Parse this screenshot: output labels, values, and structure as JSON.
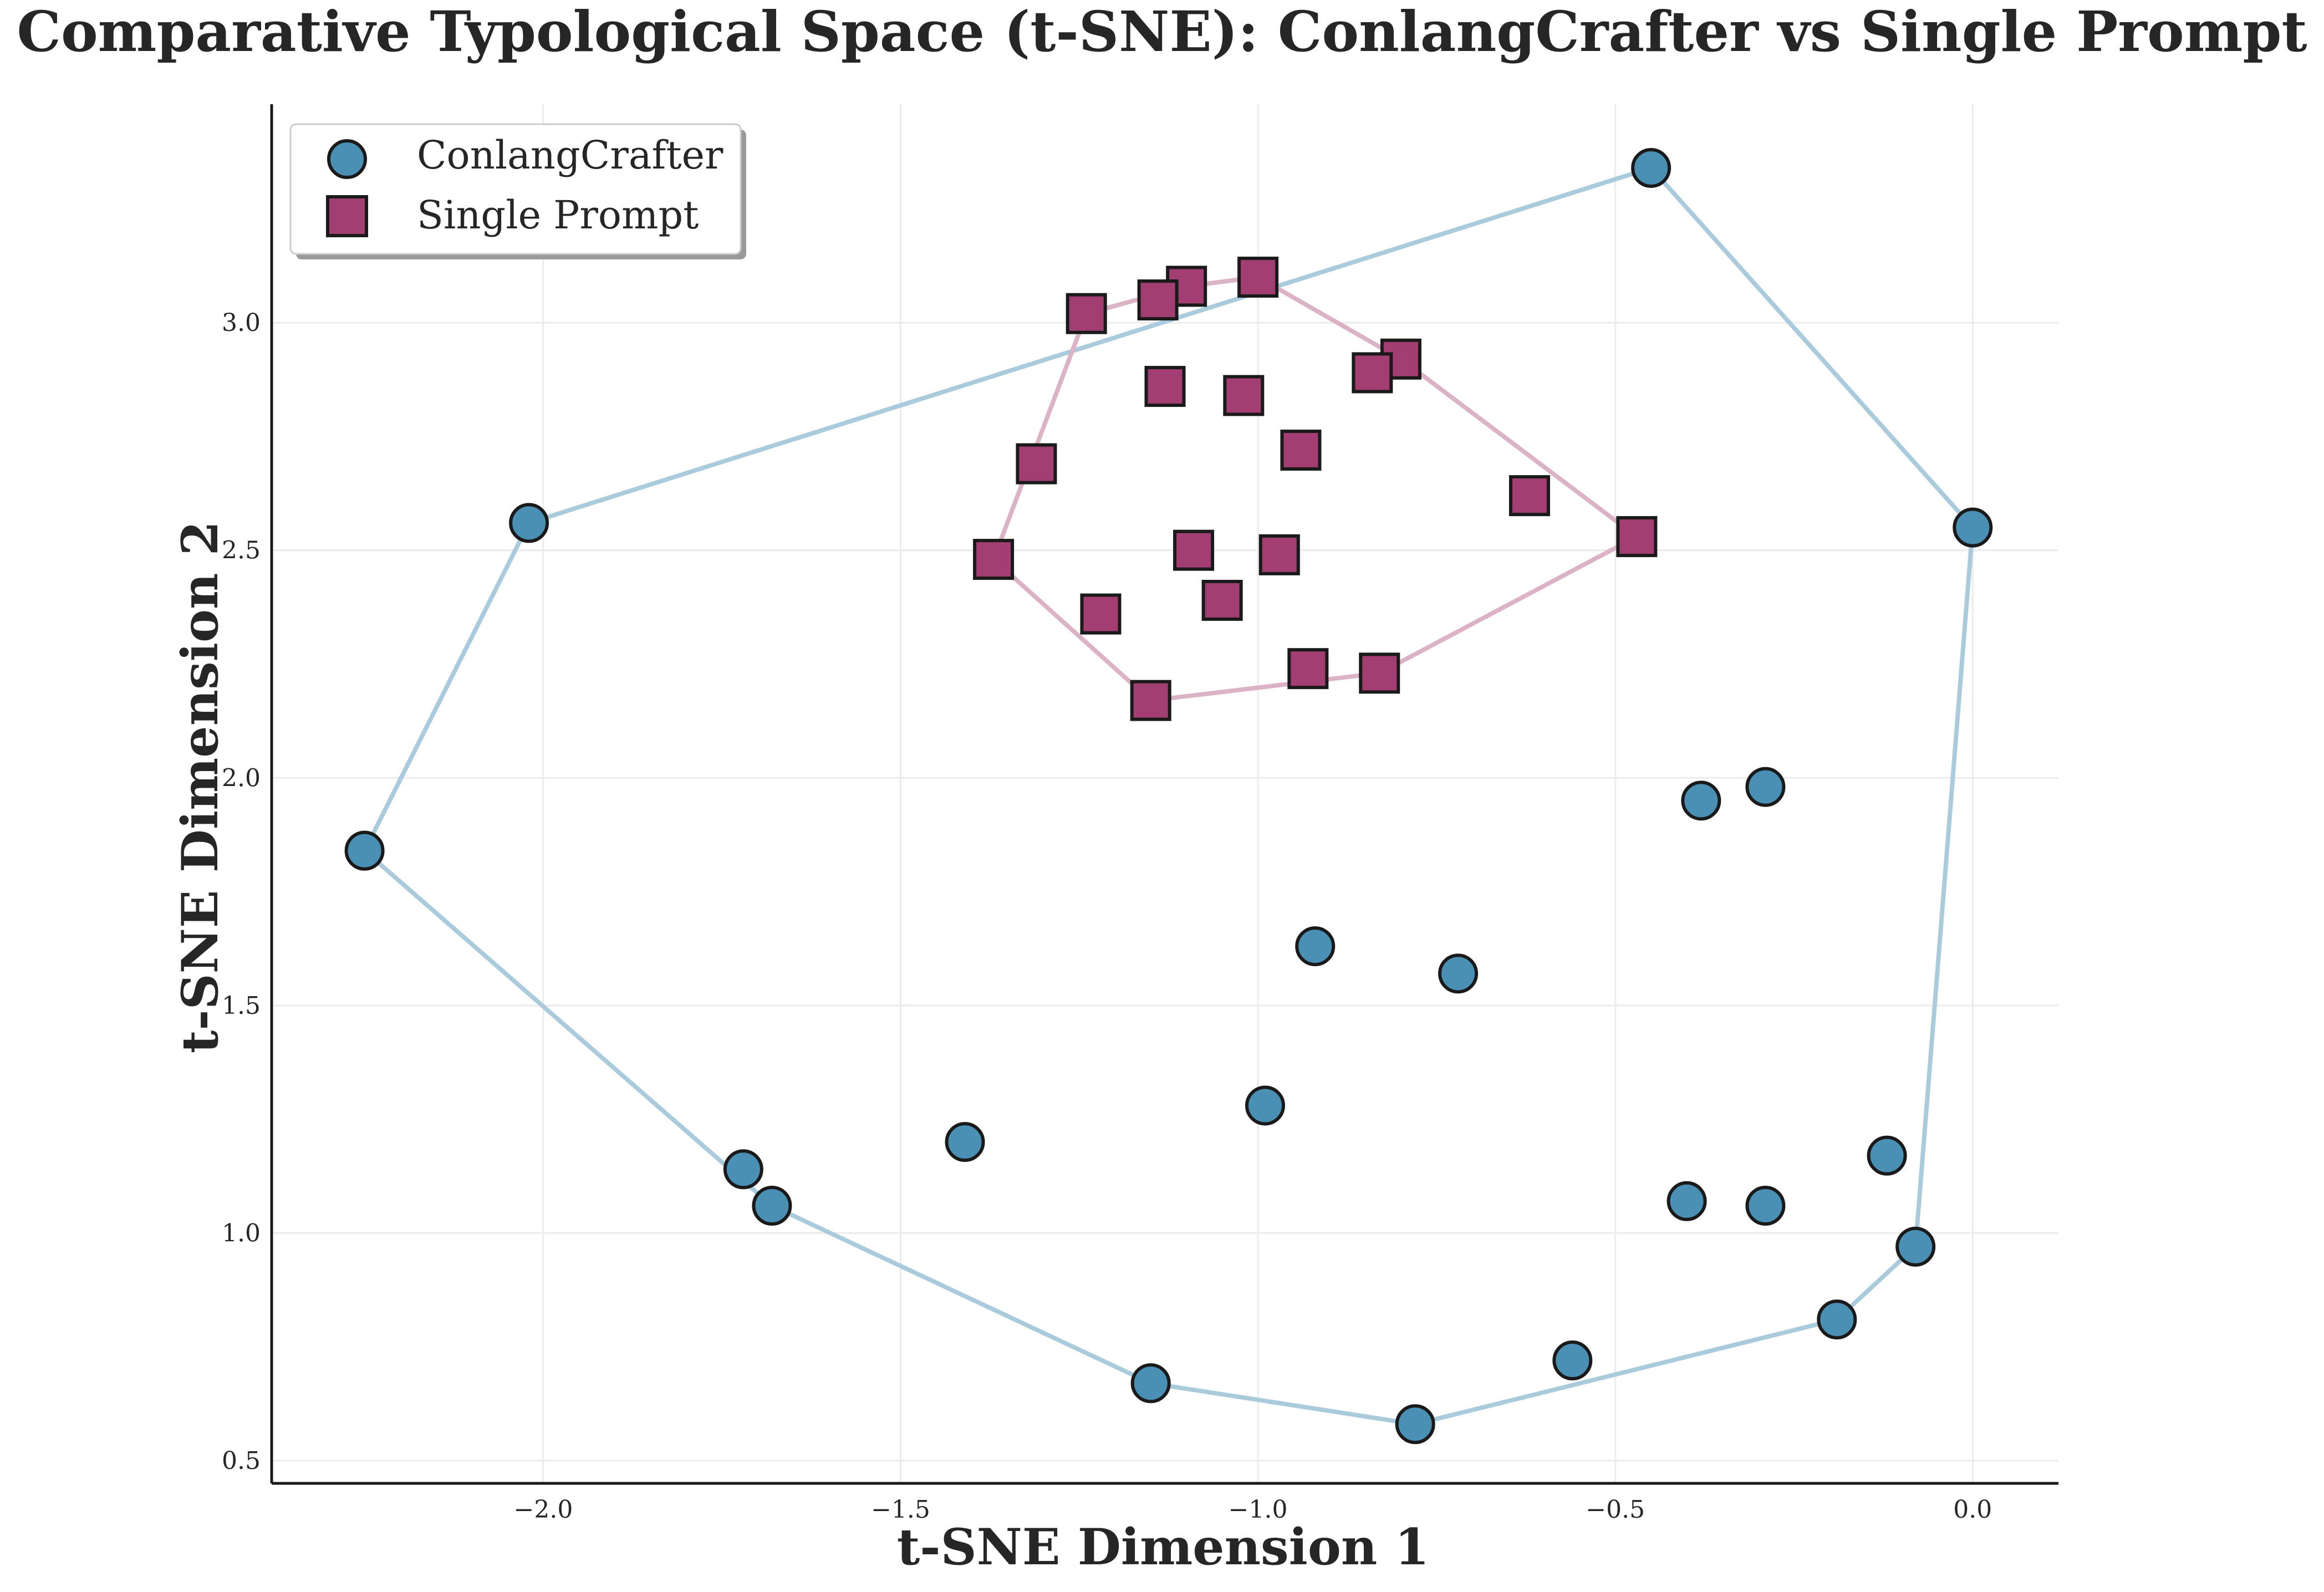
{
  "chart_data": {
    "type": "scatter",
    "title": "Comparative Typological Space (t-SNE): ConlangCrafter vs Single Prompt",
    "xlabel": "t-SNE Dimension 1",
    "ylabel": "t-SNE Dimension 2",
    "xlim": [
      -2.38,
      0.12
    ],
    "ylim": [
      0.45,
      3.48
    ],
    "xticks": [
      -2.0,
      -1.5,
      -1.0,
      -0.5,
      0.0
    ],
    "xtick_labels": [
      "−2.0",
      "−1.5",
      "−1.0",
      "−0.5",
      "0.0"
    ],
    "yticks": [
      0.5,
      1.0,
      1.5,
      2.0,
      2.5,
      3.0
    ],
    "ytick_labels": [
      "0.5",
      "1.0",
      "1.5",
      "2.0",
      "2.5",
      "3.0"
    ],
    "grid": true,
    "legend_position": "top-left",
    "series": [
      {
        "name": "ConlangCrafter",
        "marker": "circle",
        "color": "#4a90b4",
        "hull_color": "#a9cbdc",
        "points": [
          [
            -0.45,
            3.34
          ],
          [
            0.0,
            2.55
          ],
          [
            -2.02,
            2.56
          ],
          [
            -2.25,
            1.84
          ],
          [
            -0.38,
            1.95
          ],
          [
            -0.29,
            1.98
          ],
          [
            -0.92,
            1.63
          ],
          [
            -0.72,
            1.57
          ],
          [
            -0.99,
            1.28
          ],
          [
            -1.41,
            1.2
          ],
          [
            -1.72,
            1.14
          ],
          [
            -1.68,
            1.06
          ],
          [
            -0.12,
            1.17
          ],
          [
            -0.4,
            1.07
          ],
          [
            -0.29,
            1.06
          ],
          [
            -0.08,
            0.97
          ],
          [
            -0.19,
            0.81
          ],
          [
            -0.56,
            0.72
          ],
          [
            -1.15,
            0.67
          ],
          [
            -0.78,
            0.58
          ]
        ],
        "hull": [
          [
            -0.45,
            3.34
          ],
          [
            0.0,
            2.55
          ],
          [
            -0.08,
            0.97
          ],
          [
            -0.19,
            0.81
          ],
          [
            -0.78,
            0.58
          ],
          [
            -1.15,
            0.67
          ],
          [
            -1.68,
            1.06
          ],
          [
            -2.25,
            1.84
          ],
          [
            -2.02,
            2.56
          ]
        ]
      },
      {
        "name": "Single Prompt",
        "marker": "square",
        "color": "#a23e72",
        "hull_color": "#dbb2c6",
        "points": [
          [
            -1.0,
            3.1
          ],
          [
            -1.1,
            3.08
          ],
          [
            -1.14,
            3.05
          ],
          [
            -1.24,
            3.02
          ],
          [
            -0.8,
            2.92
          ],
          [
            -0.84,
            2.89
          ],
          [
            -1.13,
            2.86
          ],
          [
            -1.02,
            2.84
          ],
          [
            -0.94,
            2.72
          ],
          [
            -1.31,
            2.69
          ],
          [
            -0.62,
            2.62
          ],
          [
            -0.47,
            2.53
          ],
          [
            -1.09,
            2.5
          ],
          [
            -0.97,
            2.49
          ],
          [
            -1.37,
            2.48
          ],
          [
            -1.05,
            2.39
          ],
          [
            -1.22,
            2.36
          ],
          [
            -0.93,
            2.24
          ],
          [
            -0.83,
            2.23
          ],
          [
            -1.15,
            2.17
          ]
        ],
        "hull": [
          [
            -1.0,
            3.1
          ],
          [
            -0.8,
            2.92
          ],
          [
            -0.47,
            2.53
          ],
          [
            -0.83,
            2.23
          ],
          [
            -1.15,
            2.17
          ],
          [
            -1.37,
            2.48
          ],
          [
            -1.24,
            3.02
          ],
          [
            -1.1,
            3.08
          ]
        ]
      }
    ]
  }
}
